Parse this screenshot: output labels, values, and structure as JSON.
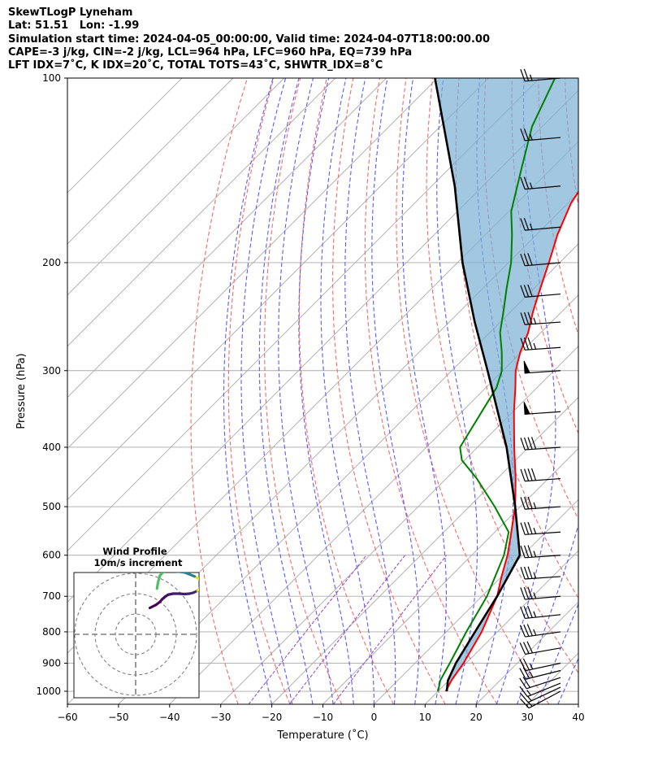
{
  "header": {
    "line1": "SkewTLogP Lyneham",
    "line2": "Lat: 51.51   Lon: -1.99",
    "line3": "Simulation start time: 2024-04-05_00:00:00, Valid time: 2024-04-07T18:00:00.00",
    "line4": "CAPE=-3 j/kg, CIN=-2 j/kg, LCL=964 hPa, LFC=960 hPa, EQ=739 hPa",
    "line5": "LFT IDX=7˚C, K IDX=20˚C, TOTAL TOTS=43˚C, SHWTR_IDX=8˚C"
  },
  "chart_data": {
    "type": "skewt",
    "xlabel": "Temperature (˚C)",
    "ylabel": "Pressure (hPa)",
    "xlim": [
      -60,
      40
    ],
    "ylim": [
      1050,
      100
    ],
    "yscale": "log",
    "skew": "45",
    "xticks": [
      -60,
      -50,
      -40,
      -30,
      -20,
      -10,
      0,
      10,
      20,
      30,
      40
    ],
    "xtick_labels": [
      "−60",
      "−50",
      "−40",
      "−30",
      "−20",
      "−10",
      "0",
      "10",
      "20",
      "30",
      "40"
    ],
    "yticks": [
      1000,
      900,
      800,
      700,
      600,
      500,
      400,
      300,
      200,
      100
    ],
    "ytick_labels": [
      "1000",
      "900",
      "800",
      "700",
      "600",
      "500",
      "400",
      "300",
      "200",
      "100"
    ],
    "grid": true,
    "colors": {
      "temperature": "#ff0000",
      "dewpoint": "#008000",
      "parcel": "#000000",
      "cape_fill": "#7bafd4",
      "dry_adiabats": "#f36b6b",
      "moist_adiabats": "#5a5aff",
      "mixing_ratio": "#a050c8",
      "isotherms": "#aaaaaa"
    },
    "temperature": {
      "p": [
        1000,
        960,
        900,
        800,
        700,
        650,
        600,
        550,
        500,
        450,
        400,
        350,
        320,
        300,
        280,
        260,
        240,
        220,
        200,
        180,
        160,
        140,
        120,
        100
      ],
      "t": [
        11.5,
        10.5,
        9.5,
        6.9,
        3.0,
        0.0,
        -3.0,
        -6.8,
        -11.0,
        -16.4,
        -22.8,
        -29.8,
        -34.2,
        -37.5,
        -40.2,
        -42.5,
        -45.7,
        -48.8,
        -52.1,
        -55.9,
        -59.4,
        -61.8,
        -63.7,
        -67.0
      ]
    },
    "dewpoint": {
      "p": [
        1000,
        960,
        900,
        800,
        700,
        600,
        550,
        500,
        450,
        420,
        400,
        350,
        320,
        300,
        280,
        260,
        240,
        220,
        200,
        180,
        165,
        140,
        120,
        100
      ],
      "t": [
        10.0,
        8.3,
        6.8,
        3.9,
        1.0,
        -3.7,
        -7.3,
        -15.0,
        -24.0,
        -30.5,
        -33.4,
        -36.1,
        -37.9,
        -40.2,
        -43.8,
        -48.0,
        -51.5,
        -55.4,
        -59.5,
        -64.8,
        -69.5,
        -76.0,
        -82.0,
        -87.0
      ]
    },
    "parcel": {
      "p": [
        1000,
        960,
        900,
        800,
        700,
        600,
        500,
        400,
        300,
        250,
        200,
        150,
        100
      ],
      "t": [
        11.7,
        9.8,
        8.0,
        5.6,
        3.0,
        -0.6,
        -11.0,
        -24.3,
        -43.0,
        -55.0,
        -69.0,
        -85.5,
        -110.5
      ]
    },
    "wind_barbs": {
      "p": [
        1000,
        985,
        970,
        950,
        925,
        900,
        850,
        800,
        750,
        700,
        650,
        600,
        550,
        500,
        450,
        400,
        350,
        300,
        275,
        250,
        225,
        200,
        175,
        150,
        125,
        100
      ],
      "speed_kt": [
        15,
        15,
        15,
        20,
        25,
        25,
        30,
        35,
        35,
        35,
        35,
        35,
        35,
        35,
        40,
        40,
        50,
        50,
        35,
        35,
        30,
        30,
        25,
        25,
        25,
        25
      ],
      "direction_deg": [
        242,
        245,
        248,
        252,
        256,
        258,
        260,
        262,
        264,
        265,
        266,
        266,
        266,
        266,
        266,
        266,
        266,
        266,
        266,
        266,
        265,
        265,
        265,
        265,
        265,
        265
      ]
    },
    "inset": {
      "title_line1": "Wind Profile",
      "title_line2": "10m/s increment",
      "rings_ms": [
        10,
        20,
        30
      ],
      "hodograph_u": [
        7.0,
        10.0,
        12.0,
        13.0,
        14.5,
        16.0,
        18.5,
        21.5,
        24.0,
        26.5,
        28.5,
        30.5,
        32.0,
        33.0,
        32.5,
        29.0,
        24.0,
        18.0,
        14.0,
        12.0,
        11.0,
        10.5
      ],
      "hodograph_v": [
        13.0,
        14.5,
        16.0,
        17.2,
        18.5,
        19.5,
        20.0,
        20.0,
        19.8,
        20.0,
        20.5,
        21.5,
        23.0,
        25.5,
        26.5,
        28.5,
        30.5,
        31.2,
        31.0,
        29.0,
        25.5,
        22.5
      ]
    }
  }
}
